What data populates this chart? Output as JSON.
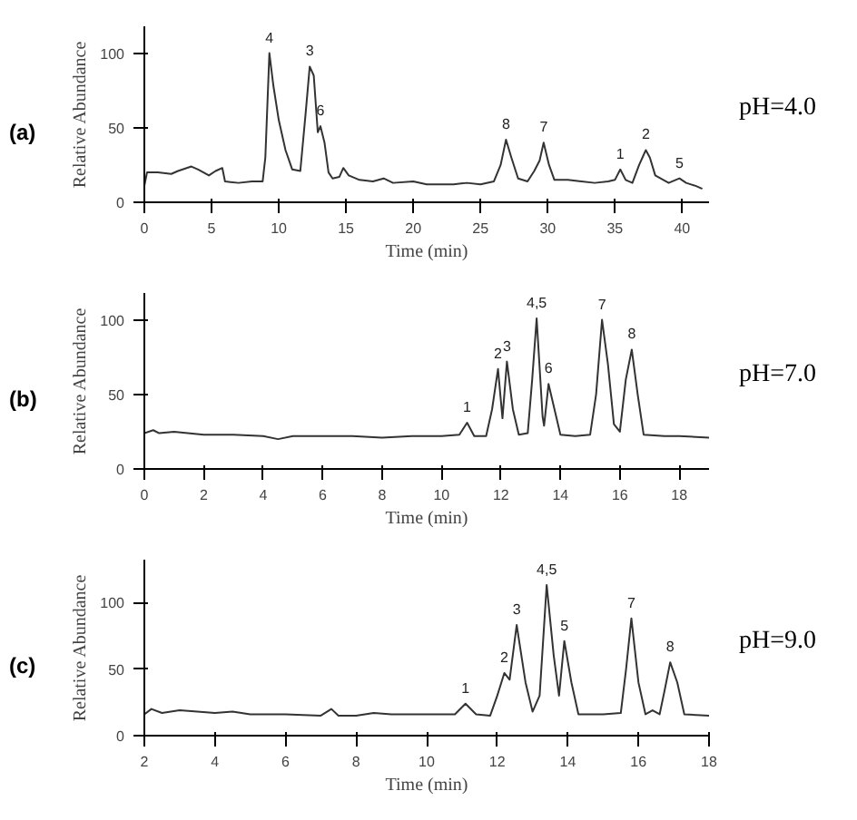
{
  "chart_data": [
    {
      "type": "line",
      "xlabel": "Time (min)",
      "ylabel": "Relative Abundance",
      "color": "#333333",
      "grid": false,
      "marker": "none",
      "line_style": "solid",
      "xlim": [
        0,
        42
      ],
      "xticks": [
        0,
        5,
        10,
        15,
        20,
        25,
        30,
        35,
        40
      ],
      "ylim": [
        0,
        118
      ],
      "yticks": [
        0,
        50,
        100
      ],
      "x": [
        0,
        0.2,
        1,
        2,
        2.5,
        3.5,
        4,
        4.8,
        5.3,
        5.8,
        6,
        7,
        8,
        8.8,
        9,
        9.3,
        9.6,
        10,
        10.5,
        11,
        11.6,
        12,
        12.3,
        12.6,
        12.9,
        13.1,
        13.4,
        13.7,
        14,
        14.5,
        14.8,
        15.2,
        16,
        17,
        17.8,
        18.5,
        20,
        21,
        22,
        23,
        24,
        25,
        26,
        26.5,
        26.9,
        27.3,
        27.8,
        28.5,
        29,
        29.4,
        29.7,
        30.1,
        30.5,
        31.5,
        32.5,
        33.5,
        34.5,
        35,
        35.4,
        35.8,
        36.3,
        36.8,
        37.1,
        37.3,
        37.6,
        38,
        39,
        39.8,
        40.3,
        41,
        41.5
      ],
      "values": [
        11,
        20,
        20,
        19,
        21,
        24,
        22,
        18,
        21,
        23,
        14,
        13,
        14,
        14,
        30,
        100,
        78,
        55,
        35,
        22,
        21,
        60,
        91,
        85,
        47,
        51,
        40,
        20,
        16,
        17,
        23,
        18,
        15,
        14,
        16,
        13,
        14,
        12,
        12,
        12,
        13,
        12,
        14,
        25,
        42,
        30,
        16,
        14,
        21,
        28,
        40,
        25,
        15,
        15,
        14,
        13,
        14,
        15,
        22,
        15,
        13,
        25,
        31,
        35,
        30,
        18,
        13,
        16,
        13,
        11,
        9
      ],
      "annotations": [
        "(a)",
        "pH=4.0",
        {
          "text": "4",
          "x": 9.3,
          "y": 100
        },
        {
          "text": "3",
          "x": 12.3,
          "y": 91
        },
        {
          "text": "6",
          "x": 13.1,
          "y": 51
        },
        {
          "text": "8",
          "x": 26.9,
          "y": 42
        },
        {
          "text": "7",
          "x": 29.7,
          "y": 40
        },
        {
          "text": "1",
          "x": 35.4,
          "y": 22
        },
        {
          "text": "2",
          "x": 37.3,
          "y": 35
        },
        {
          "text": "5",
          "x": 39.8,
          "y": 16
        }
      ]
    },
    {
      "type": "line",
      "xlabel": "Time (min)",
      "ylabel": "Relative Abundance",
      "color": "#333333",
      "grid": false,
      "marker": "none",
      "line_style": "solid",
      "xlim": [
        0,
        19
      ],
      "xticks": [
        0,
        2,
        4,
        6,
        8,
        10,
        12,
        14,
        16,
        18
      ],
      "ylim": [
        0,
        118
      ],
      "yticks": [
        0,
        50,
        100
      ],
      "x": [
        0,
        0.3,
        0.5,
        1,
        2,
        3,
        4,
        4.5,
        5,
        6,
        7,
        8,
        9,
        10,
        10.6,
        10.86,
        11.1,
        11.5,
        11.7,
        11.9,
        12.05,
        12.2,
        12.4,
        12.6,
        12.9,
        13.05,
        13.2,
        13.4,
        13.45,
        13.6,
        13.8,
        14,
        14.5,
        15,
        15.2,
        15.4,
        15.6,
        15.8,
        16,
        16.2,
        16.4,
        16.6,
        16.8,
        17.5,
        18,
        19
      ],
      "values": [
        24,
        26,
        24,
        25,
        23,
        23,
        22,
        20,
        22,
        22,
        22,
        21,
        22,
        22,
        23,
        31,
        22,
        22,
        40,
        67,
        34,
        72,
        40,
        23,
        24,
        60,
        101,
        35,
        29,
        57,
        40,
        23,
        22,
        23,
        50,
        100,
        70,
        30,
        25,
        60,
        80,
        50,
        23,
        22,
        22,
        21
      ],
      "annotations": [
        "(b)",
        "pH=7.0",
        {
          "text": "1",
          "x": 10.86,
          "y": 31
        },
        {
          "text": "2",
          "x": 11.9,
          "y": 67
        },
        {
          "text": "3",
          "x": 12.2,
          "y": 72
        },
        {
          "text": "4,5",
          "x": 13.2,
          "y": 101
        },
        {
          "text": "6",
          "x": 13.6,
          "y": 57
        },
        {
          "text": "7",
          "x": 15.4,
          "y": 100
        },
        {
          "text": "8",
          "x": 16.4,
          "y": 80
        }
      ]
    },
    {
      "type": "line",
      "xlabel": "Time (min)",
      "ylabel": "Relative Abundance",
      "color": "#333333",
      "grid": false,
      "marker": "none",
      "line_style": "solid",
      "xlim": [
        2,
        18
      ],
      "xticks": [
        2,
        4,
        6,
        8,
        10,
        12,
        14,
        16,
        18
      ],
      "ylim": [
        0,
        132
      ],
      "yticks": [
        0,
        50,
        100
      ],
      "x": [
        2,
        2.2,
        2.5,
        3,
        3.5,
        4,
        4.5,
        5,
        6,
        7,
        7.3,
        7.5,
        8,
        8.5,
        9,
        10,
        10.8,
        11.1,
        11.4,
        11.8,
        12,
        12.2,
        12.35,
        12.55,
        12.8,
        13,
        13.2,
        13.4,
        13.6,
        13.75,
        13.9,
        14.1,
        14.3,
        15,
        15.5,
        15.65,
        15.8,
        16,
        16.2,
        16.4,
        16.6,
        16.75,
        16.9,
        17.1,
        17.3,
        18
      ],
      "values": [
        16,
        20,
        17,
        19,
        18,
        17,
        18,
        16,
        16,
        15,
        20,
        15,
        15,
        17,
        16,
        16,
        16,
        24,
        16,
        15,
        30,
        47,
        42,
        83,
        40,
        18,
        30,
        113,
        60,
        30,
        71,
        40,
        16,
        16,
        17,
        50,
        88,
        40,
        16,
        19,
        16,
        35,
        55,
        40,
        16,
        15
      ],
      "annotations": [
        "(c)",
        "pH=9.0",
        {
          "text": "1",
          "x": 11.1,
          "y": 24
        },
        {
          "text": "2",
          "x": 12.2,
          "y": 47
        },
        {
          "text": "3",
          "x": 12.55,
          "y": 83
        },
        {
          "text": "4,5",
          "x": 13.4,
          "y": 113
        },
        {
          "text": "5",
          "x": 13.9,
          "y": 71
        },
        {
          "text": "7",
          "x": 15.8,
          "y": 88
        },
        {
          "text": "8",
          "x": 16.9,
          "y": 55
        }
      ]
    }
  ]
}
